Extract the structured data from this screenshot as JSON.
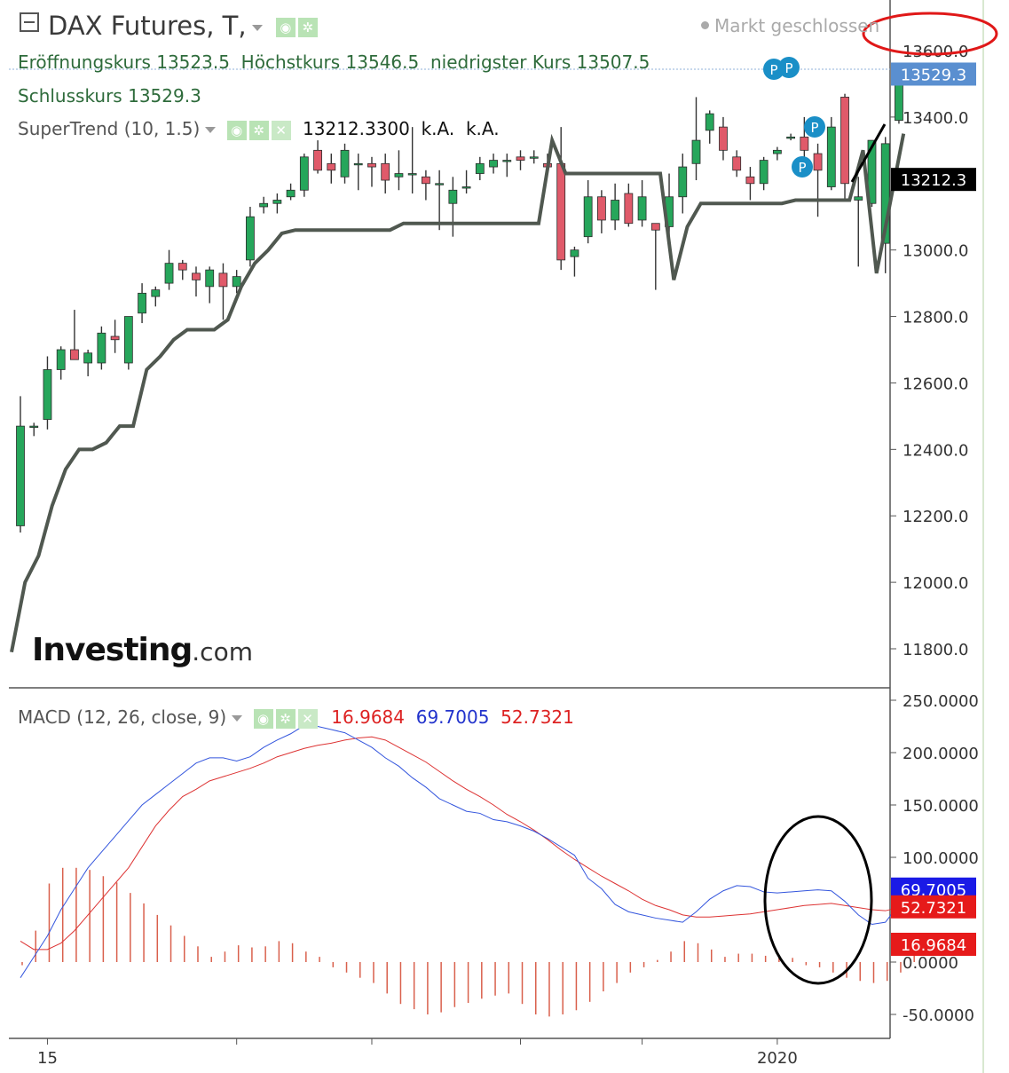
{
  "header": {
    "title": "DAX Futures, T,",
    "market_status": "Markt geschlossen",
    "ohlc": {
      "open_label": "Eröffnungskurs",
      "open": "13523.5",
      "high_label": "Höchstkurs",
      "high": "13546.5",
      "low_label": "niedrigster Kurs",
      "low": "13507.5",
      "close_label": "Schlusskurs",
      "close": "13529.3"
    },
    "supertrend": {
      "label": "SuperTrend (10, 1.5)",
      "value": "13212.3300",
      "v2": "k.A.",
      "v3": "k.A."
    },
    "macd": {
      "label": "MACD (12, 26, close, 9)",
      "hist": "16.9684",
      "macd": "69.7005",
      "signal": "52.7321"
    },
    "logo": {
      "main": "Investing",
      "suffix": ".com"
    }
  },
  "colors": {
    "up": "#26a65b",
    "down": "#e05a6a",
    "supertrend": "#505850",
    "macd_line": "#3355dd",
    "signal_line": "#dd3333",
    "hist": "#d9604c",
    "price_tag": "#5a8fd0",
    "st_tag": "#000000",
    "marker": "#1a8fc7"
  },
  "chart_data": [
    {
      "type": "candlestick",
      "name": "price",
      "x_tick_labels": [
        {
          "index": 2,
          "label": "15"
        },
        {
          "index": 56,
          "label": "2020"
        }
      ],
      "ylim": [
        11720,
        13660
      ],
      "y_ticks": [
        "13600.0",
        "13400.0",
        "13000.0",
        "12800.0",
        "12600.0",
        "12400.0",
        "12200.0",
        "12000.0",
        "11800.0"
      ],
      "last_price_tag": "13529.3",
      "supertrend_tag": "13212.3",
      "candles": [
        {
          "o": 12170,
          "h": 12560,
          "l": 12150,
          "c": 12470
        },
        {
          "o": 12470,
          "h": 12480,
          "l": 12440,
          "c": 12470
        },
        {
          "o": 12490,
          "h": 12680,
          "l": 12460,
          "c": 12640
        },
        {
          "o": 12640,
          "h": 12710,
          "l": 12610,
          "c": 12700
        },
        {
          "o": 12700,
          "h": 12820,
          "l": 12680,
          "c": 12670
        },
        {
          "o": 12660,
          "h": 12700,
          "l": 12620,
          "c": 12690
        },
        {
          "o": 12660,
          "h": 12770,
          "l": 12640,
          "c": 12750
        },
        {
          "o": 12740,
          "h": 12790,
          "l": 12690,
          "c": 12730
        },
        {
          "o": 12660,
          "h": 12800,
          "l": 12640,
          "c": 12800
        },
        {
          "o": 12810,
          "h": 12900,
          "l": 12780,
          "c": 12870
        },
        {
          "o": 12860,
          "h": 12890,
          "l": 12830,
          "c": 12880
        },
        {
          "o": 12900,
          "h": 13000,
          "l": 12880,
          "c": 12960
        },
        {
          "o": 12960,
          "h": 12970,
          "l": 12910,
          "c": 12940
        },
        {
          "o": 12930,
          "h": 12950,
          "l": 12860,
          "c": 12910
        },
        {
          "o": 12890,
          "h": 12950,
          "l": 12840,
          "c": 12940
        },
        {
          "o": 12930,
          "h": 12960,
          "l": 12790,
          "c": 12890
        },
        {
          "o": 12890,
          "h": 12940,
          "l": 12870,
          "c": 12920
        },
        {
          "o": 12970,
          "h": 13130,
          "l": 12950,
          "c": 13100
        },
        {
          "o": 13130,
          "h": 13160,
          "l": 13110,
          "c": 13140
        },
        {
          "o": 13140,
          "h": 13170,
          "l": 13110,
          "c": 13150
        },
        {
          "o": 13160,
          "h": 13200,
          "l": 13150,
          "c": 13180
        },
        {
          "o": 13180,
          "h": 13290,
          "l": 13160,
          "c": 13280
        },
        {
          "o": 13300,
          "h": 13330,
          "l": 13230,
          "c": 13240
        },
        {
          "o": 13260,
          "h": 13290,
          "l": 13200,
          "c": 13240
        },
        {
          "o": 13220,
          "h": 13320,
          "l": 13200,
          "c": 13300
        },
        {
          "o": 13260,
          "h": 13290,
          "l": 13180,
          "c": 13260
        },
        {
          "o": 13260,
          "h": 13280,
          "l": 13190,
          "c": 13250
        },
        {
          "o": 13260,
          "h": 13290,
          "l": 13170,
          "c": 13210
        },
        {
          "o": 13220,
          "h": 13300,
          "l": 13180,
          "c": 13230
        },
        {
          "o": 13230,
          "h": 13370,
          "l": 13170,
          "c": 13230
        },
        {
          "o": 13220,
          "h": 13240,
          "l": 13150,
          "c": 13200
        },
        {
          "o": 13200,
          "h": 13240,
          "l": 13060,
          "c": 13200
        },
        {
          "o": 13140,
          "h": 13220,
          "l": 13040,
          "c": 13180
        },
        {
          "o": 13190,
          "h": 13240,
          "l": 13170,
          "c": 13190
        },
        {
          "o": 13230,
          "h": 13280,
          "l": 13210,
          "c": 13260
        },
        {
          "o": 13250,
          "h": 13290,
          "l": 13230,
          "c": 13270
        },
        {
          "o": 13270,
          "h": 13290,
          "l": 13220,
          "c": 13270
        },
        {
          "o": 13280,
          "h": 13300,
          "l": 13240,
          "c": 13270
        },
        {
          "o": 13280,
          "h": 13300,
          "l": 13260,
          "c": 13280
        },
        {
          "o": 13260,
          "h": 13290,
          "l": 13240,
          "c": 13250
        },
        {
          "o": 13260,
          "h": 13370,
          "l": 12940,
          "c": 12970
        },
        {
          "o": 12980,
          "h": 13010,
          "l": 12920,
          "c": 13000
        },
        {
          "o": 13040,
          "h": 13210,
          "l": 13020,
          "c": 13160
        },
        {
          "o": 13160,
          "h": 13180,
          "l": 13050,
          "c": 13090
        },
        {
          "o": 13090,
          "h": 13200,
          "l": 13060,
          "c": 13150
        },
        {
          "o": 13170,
          "h": 13200,
          "l": 13070,
          "c": 13080
        },
        {
          "o": 13090,
          "h": 13210,
          "l": 13070,
          "c": 13160
        },
        {
          "o": 13080,
          "h": 13080,
          "l": 12880,
          "c": 13060
        },
        {
          "o": 13070,
          "h": 13230,
          "l": 13030,
          "c": 13160
        },
        {
          "o": 13160,
          "h": 13290,
          "l": 13110,
          "c": 13250
        },
        {
          "o": 13260,
          "h": 13460,
          "l": 13210,
          "c": 13330
        },
        {
          "o": 13360,
          "h": 13420,
          "l": 13320,
          "c": 13410
        },
        {
          "o": 13370,
          "h": 13400,
          "l": 13270,
          "c": 13300
        },
        {
          "o": 13280,
          "h": 13300,
          "l": 13220,
          "c": 13240
        },
        {
          "o": 13220,
          "h": 13250,
          "l": 13150,
          "c": 13200
        },
        {
          "o": 13200,
          "h": 13280,
          "l": 13180,
          "c": 13270
        },
        {
          "o": 13290,
          "h": 13310,
          "l": 13270,
          "c": 13300
        },
        {
          "o": 13340,
          "h": 13350,
          "l": 13330,
          "c": 13340
        },
        {
          "o": 13340,
          "h": 13400,
          "l": 13220,
          "c": 13300
        },
        {
          "o": 13290,
          "h": 13320,
          "l": 13100,
          "c": 13240
        },
        {
          "o": 13190,
          "h": 13400,
          "l": 13180,
          "c": 13370
        },
        {
          "o": 13460,
          "h": 13470,
          "l": 13150,
          "c": 13200
        },
        {
          "o": 13150,
          "h": 13220,
          "l": 12950,
          "c": 13160
        },
        {
          "o": 13140,
          "h": 13330,
          "l": 13130,
          "c": 13330
        },
        {
          "o": 13020,
          "h": 13340,
          "l": 12930,
          "c": 13320
        },
        {
          "o": 13390,
          "h": 13530,
          "l": 13380,
          "c": 13520
        },
        {
          "o": 13520,
          "h": 13540,
          "l": 13510,
          "c": 13530
        }
      ],
      "supertrend": [
        11790,
        12000,
        12080,
        12230,
        12340,
        12400,
        12400,
        12420,
        12470,
        12470,
        12640,
        12680,
        12730,
        12760,
        12760,
        12760,
        12790,
        12890,
        12960,
        13000,
        13050,
        13060,
        13060,
        13060,
        13060,
        13060,
        13060,
        13060,
        13060,
        13080,
        13080,
        13080,
        13080,
        13080,
        13080,
        13080,
        13080,
        13080,
        13080,
        13080,
        13330,
        13230,
        13230,
        13230,
        13230,
        13230,
        13230,
        13230,
        13230,
        12910,
        13070,
        13140,
        13140,
        13140,
        13140,
        13140,
        13140,
        13140,
        13150,
        13150,
        13150,
        13150,
        13150,
        13300,
        12930,
        13140,
        13350
      ]
    },
    {
      "type": "line",
      "name": "macd",
      "ylim": [
        -65,
        260
      ],
      "y_ticks": [
        "250.0000",
        "200.0000",
        "150.0000",
        "100.0000",
        "0.0000",
        "-50.0000"
      ],
      "tags": {
        "macd": "69.7005",
        "signal": "52.7321",
        "hist": "16.9684"
      },
      "macd_line": [
        -15,
        5,
        25,
        50,
        70,
        90,
        105,
        120,
        135,
        150,
        160,
        170,
        180,
        190,
        195,
        195,
        192,
        196,
        205,
        212,
        218,
        226,
        225,
        222,
        219,
        212,
        205,
        195,
        187,
        176,
        167,
        156,
        150,
        144,
        142,
        136,
        134,
        130,
        125,
        118,
        110,
        102,
        80,
        70,
        55,
        48,
        45,
        42,
        40,
        38,
        48,
        60,
        68,
        73,
        72,
        67,
        66,
        67,
        68,
        69,
        68,
        58,
        45,
        36,
        38,
        55,
        70
      ],
      "signal_line": [
        20,
        12,
        12,
        18,
        30,
        45,
        60,
        75,
        90,
        110,
        130,
        145,
        158,
        165,
        173,
        177,
        181,
        185,
        190,
        196,
        200,
        204,
        207,
        209,
        212,
        214,
        215,
        212,
        205,
        198,
        191,
        182,
        173,
        165,
        158,
        150,
        141,
        134,
        126,
        117,
        107,
        98,
        90,
        82,
        75,
        68,
        60,
        54,
        50,
        45,
        43,
        43,
        44,
        45,
        46,
        48,
        50,
        52,
        54,
        55,
        56,
        54,
        52,
        50,
        49,
        52,
        53
      ],
      "histogram": [
        -3,
        30,
        75,
        90,
        90,
        88,
        82,
        76,
        66,
        56,
        45,
        35,
        25,
        15,
        5,
        10,
        16,
        14,
        15,
        20,
        18,
        10,
        5,
        -5,
        -10,
        -15,
        -20,
        -30,
        -40,
        -45,
        -50,
        -48,
        -43,
        -39,
        -35,
        -32,
        -30,
        -40,
        -50,
        -52,
        -50,
        -46,
        -38,
        -28,
        -20,
        -10,
        -5,
        2,
        10,
        20,
        18,
        12,
        5,
        8,
        8,
        6,
        5,
        4,
        -3,
        -5,
        -10,
        -15,
        -18,
        -20,
        -18,
        -10,
        17
      ]
    }
  ]
}
